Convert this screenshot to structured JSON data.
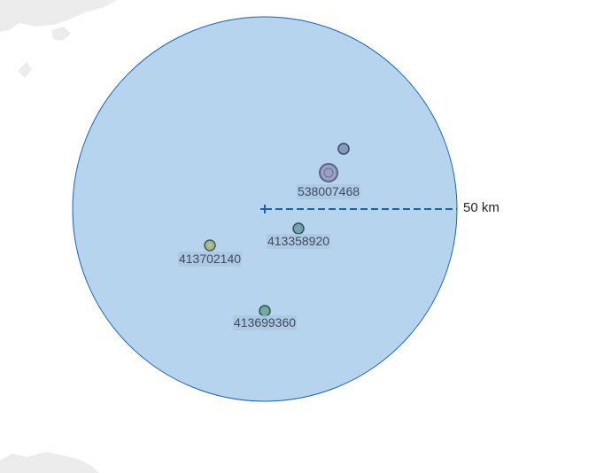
{
  "map": {
    "radius_label": "50 km",
    "circle_fill": "#b7d4ee",
    "circle_stroke": "#1a63b0",
    "land_color": "#ececec",
    "vessels": [
      {
        "id": "v1",
        "label": "",
        "marker_color": "#5a6e9a",
        "marker_size": "medium"
      },
      {
        "id": "v2",
        "label": "538007468",
        "marker_color": "#7e85a8",
        "marker_size": "large"
      },
      {
        "id": "v3",
        "label": "413358920",
        "marker_color": "#3f7f86",
        "marker_size": "small"
      },
      {
        "id": "v4",
        "label": "413702140",
        "marker_color": "#8aa16a",
        "marker_size": "small"
      },
      {
        "id": "v5",
        "label": "413699360",
        "marker_color": "#3f8a70",
        "marker_size": "small"
      }
    ]
  }
}
